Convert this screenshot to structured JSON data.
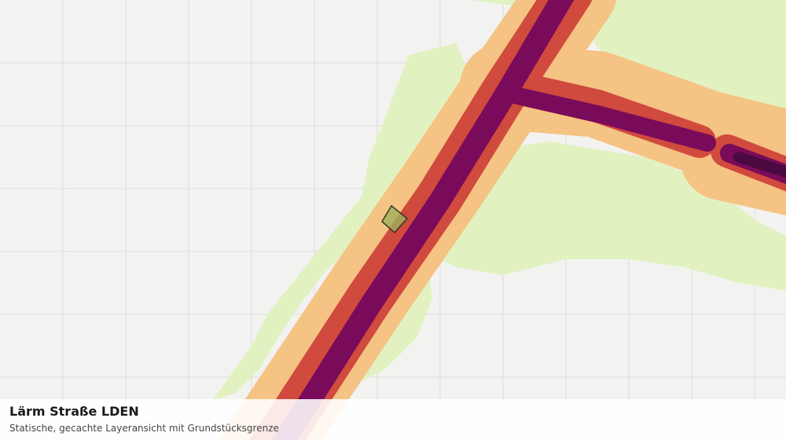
{
  "caption": {
    "title": "Lärm Straße LDEN",
    "subtitle": "Statische, gecachte Layeransicht mit Grundstücksgrenze"
  }
}
